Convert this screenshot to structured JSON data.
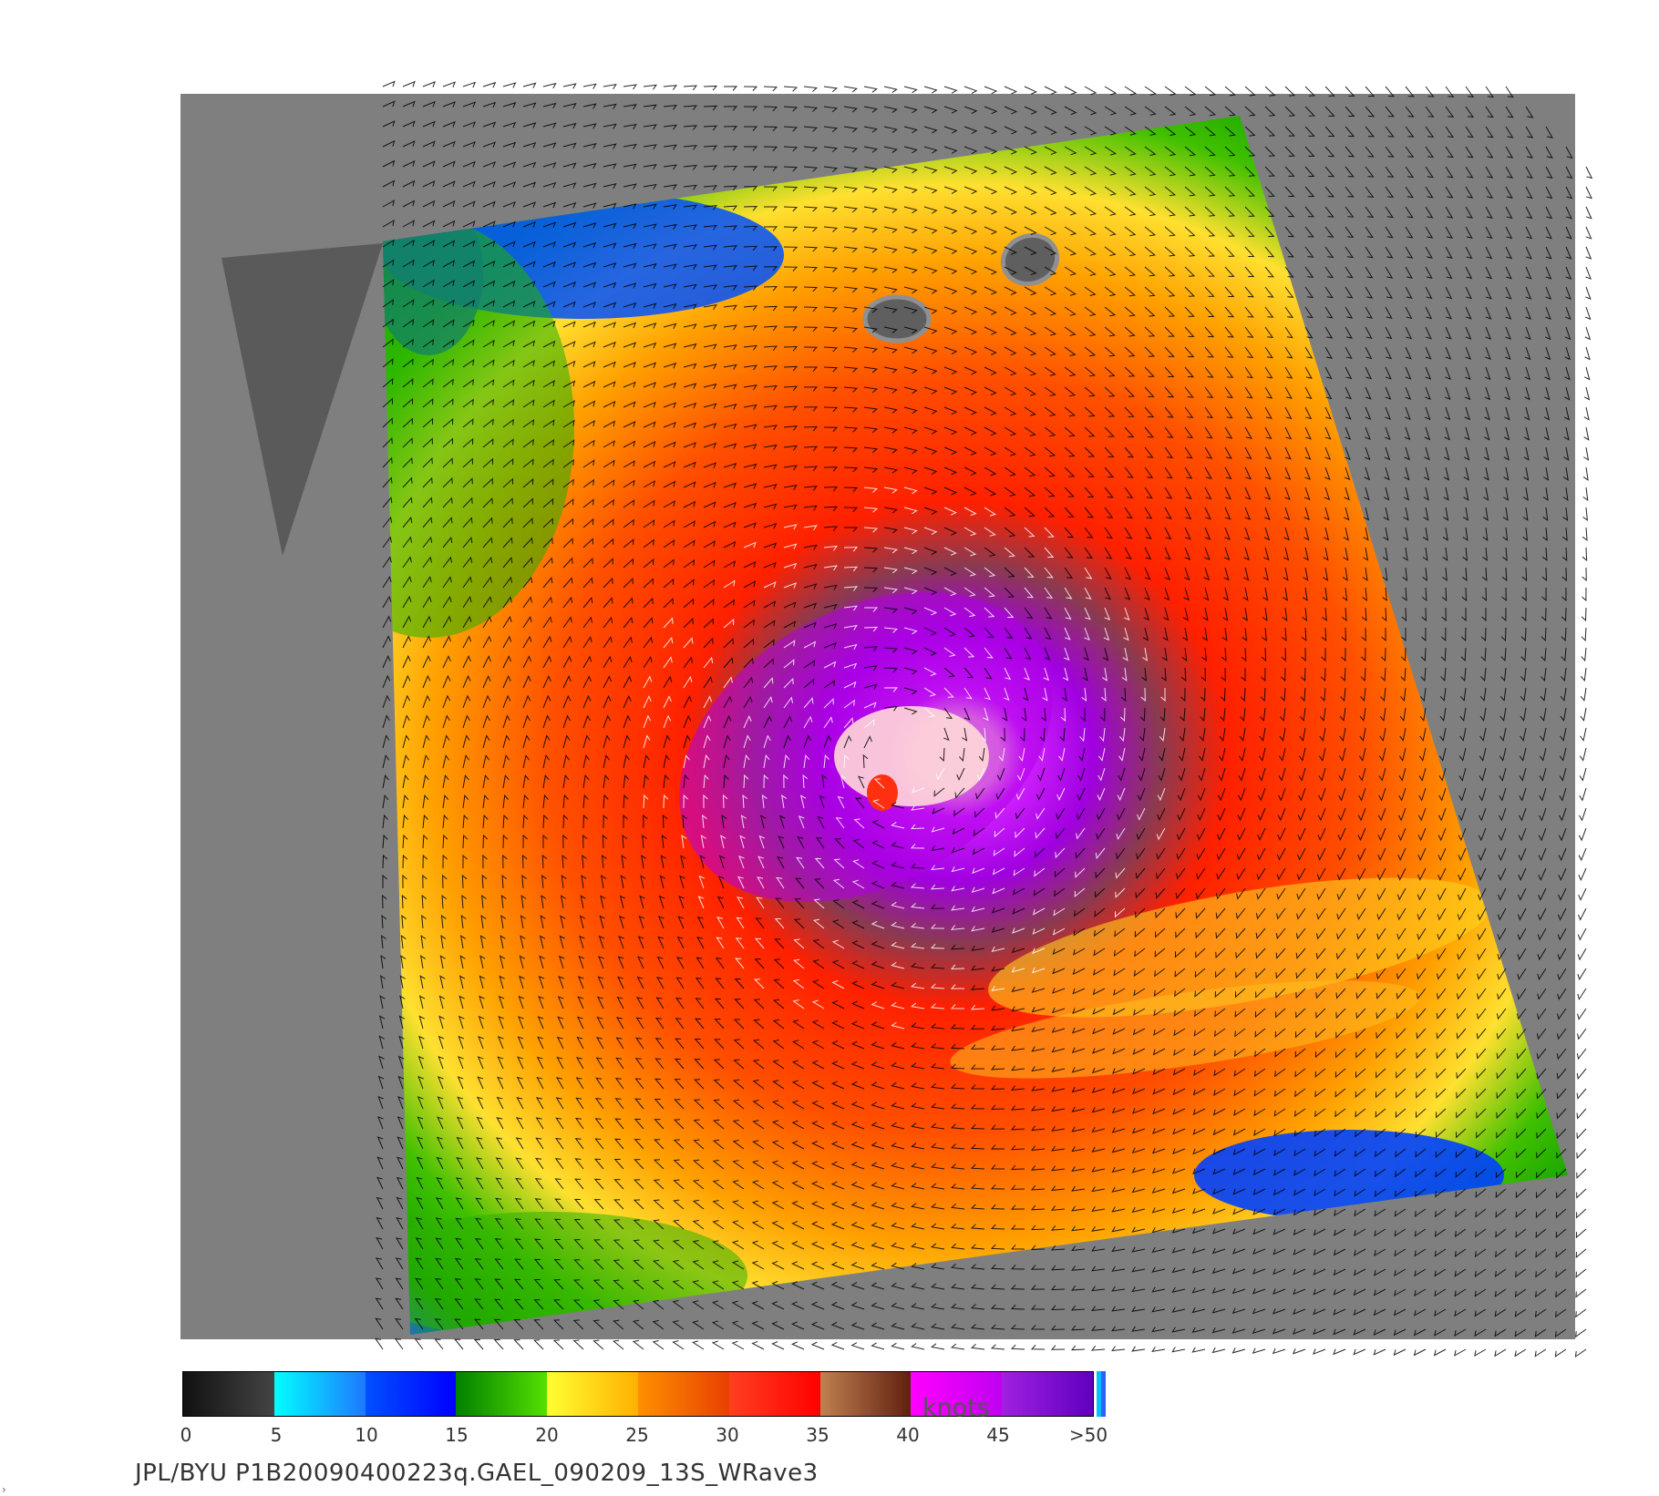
{
  "map": {
    "panel_color": "#7f7f7f",
    "swath_bg": "#5f5f5f",
    "barb_colors": [
      "#000000",
      "#ffffff"
    ]
  },
  "legend": {
    "units": "knots",
    "ticks": [
      "0",
      "5",
      "10",
      "15",
      "20",
      "25",
      "30",
      "35",
      "40",
      "45",
      ">50"
    ],
    "segments": [
      {
        "from": "#111111",
        "to": "#444444"
      },
      {
        "from": "#00ffff",
        "to": "#1e78ff"
      },
      {
        "from": "#0050ff",
        "to": "#0000ff"
      },
      {
        "from": "#008000",
        "to": "#55e000"
      },
      {
        "from": "#ffff33",
        "to": "#ffb000"
      },
      {
        "from": "#ff9000",
        "to": "#e84000"
      },
      {
        "from": "#ff4020",
        "to": "#ff0000"
      },
      {
        "from": "#c08050",
        "to": "#602010"
      },
      {
        "from": "#ff00ff",
        "to": "#c000f0"
      },
      {
        "from": "#a020e0",
        "to": "#6000c0"
      }
    ],
    "end_colors": [
      "#00c0ff",
      "#3060ff"
    ]
  },
  "caption": "JPL/BYU P1B20090400223q.GAEL_090209_13S_WRave3",
  "corner_glyph": "›"
}
